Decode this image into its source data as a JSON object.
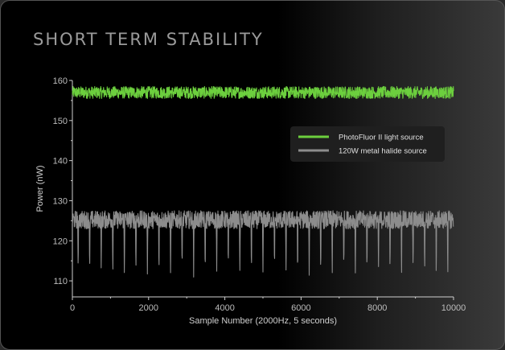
{
  "chart_data": {
    "type": "line",
    "title": "SHORT TERM STABILITY",
    "xlabel": "Sample Number (2000Hz, 5 seconds)",
    "ylabel": "Power (nW)",
    "xlim": [
      0,
      10000
    ],
    "ylim": [
      106,
      160
    ],
    "x_ticks": [
      0,
      2000,
      4000,
      6000,
      8000,
      10000
    ],
    "y_ticks": [
      110,
      120,
      130,
      140,
      150,
      160
    ],
    "grid": false,
    "legend_position": "right",
    "series": [
      {
        "name": "PhotoFluor II light source",
        "color": "#6ccf3e",
        "x_range": [
          0,
          10000
        ],
        "mean": 157,
        "noise_range": [
          155.5,
          158.5
        ]
      },
      {
        "name": "120W metal halide source",
        "color": "#8c8c8c",
        "x_range": [
          0,
          10000
        ],
        "mean": 125.5,
        "noise_range": [
          123,
          127.5
        ],
        "dip_count": 33,
        "dip_min": 110
      }
    ]
  }
}
